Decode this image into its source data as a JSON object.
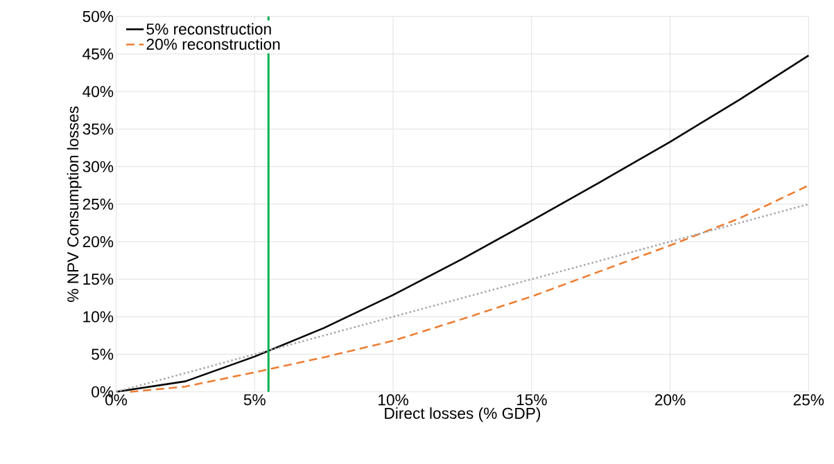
{
  "chart_data": {
    "type": "line",
    "xlabel": "Direct losses (% GDP)",
    "ylabel": "% NPV Consumption losses",
    "xlim": [
      0,
      25
    ],
    "ylim": [
      0,
      50
    ],
    "xticks": [
      {
        "value": 0,
        "label": "0%"
      },
      {
        "value": 5,
        "label": "5%"
      },
      {
        "value": 10,
        "label": "10%"
      },
      {
        "value": 15,
        "label": "15%"
      },
      {
        "value": 20,
        "label": "20%"
      },
      {
        "value": 25,
        "label": "25%"
      }
    ],
    "yticks": [
      {
        "value": 0,
        "label": "0%"
      },
      {
        "value": 5,
        "label": "5%"
      },
      {
        "value": 10,
        "label": "10%"
      },
      {
        "value": 15,
        "label": "15%"
      },
      {
        "value": 20,
        "label": "20%"
      },
      {
        "value": 25,
        "label": "25%"
      },
      {
        "value": 30,
        "label": "30%"
      },
      {
        "value": 35,
        "label": "35%"
      },
      {
        "value": 40,
        "label": "40%"
      },
      {
        "value": 45,
        "label": "45%"
      },
      {
        "value": 50,
        "label": "50%"
      }
    ],
    "grid": true,
    "legend": "top left",
    "series": [
      {
        "name": "5% reconstruction",
        "color": "#000000",
        "line_style": "solid",
        "x": [
          0,
          2.5,
          5,
          7.5,
          10,
          12.5,
          15,
          17.5,
          20,
          22.5,
          25
        ],
        "values": [
          0,
          1.4,
          4.7,
          8.5,
          12.9,
          17.7,
          22.8,
          28.0,
          33.3,
          38.9,
          44.8
        ]
      },
      {
        "name": "20% reconstruction",
        "color": "#ed7d31",
        "line_style": "dashed",
        "x": [
          0.5,
          2.5,
          5,
          7.5,
          10,
          12.5,
          15,
          17.5,
          20,
          22.5,
          25
        ],
        "values": [
          0,
          0.7,
          2.6,
          4.6,
          6.8,
          9.7,
          12.7,
          16.1,
          19.5,
          23.1,
          27.5
        ]
      },
      {
        "color": "#a6a6a6",
        "line_style": "dotted",
        "x": [
          0,
          25
        ],
        "values": [
          0,
          25
        ]
      }
    ],
    "ref_lines": [
      {
        "axis": "x",
        "value": 5.5,
        "color": "#00b050"
      }
    ]
  }
}
